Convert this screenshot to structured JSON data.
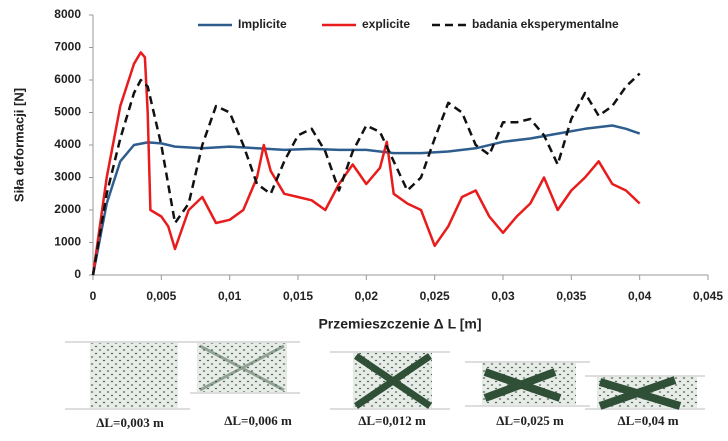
{
  "chart_data": {
    "type": "line",
    "y_label": "Siła deformacji [N]",
    "x_label": "Przemieszczenie Δ L [m]",
    "xlim": [
      0,
      0.045
    ],
    "xticks": [
      0,
      {
        "value": 0.005,
        "label": "0,005"
      },
      {
        "value": 0.01,
        "label": "0,01"
      },
      {
        "value": 0.015,
        "label": "0,015"
      },
      {
        "value": 0.02,
        "label": "0,02"
      },
      {
        "value": 0.025,
        "label": "0,025"
      },
      {
        "value": 0.03,
        "label": "0,03"
      },
      {
        "value": 0.035,
        "label": "0,035"
      },
      {
        "value": 0.04,
        "label": "0,04"
      },
      {
        "value": 0.045,
        "label": "0,045"
      }
    ],
    "ylim": [
      0,
      8000
    ],
    "yticks": [
      0,
      1000,
      2000,
      3000,
      4000,
      5000,
      6000,
      7000,
      8000
    ],
    "legend": "top",
    "series": [
      {
        "name": "Implicite",
        "color": "#2e5d8e",
        "style": "solid",
        "x": [
          0,
          0.001,
          0.002,
          0.003,
          0.004,
          0.005,
          0.006,
          0.008,
          0.01,
          0.012,
          0.014,
          0.016,
          0.018,
          0.02,
          0.022,
          0.024,
          0.026,
          0.028,
          0.03,
          0.032,
          0.034,
          0.036,
          0.038,
          0.039,
          0.04
        ],
        "values": [
          0,
          2200,
          3500,
          4000,
          4080,
          4050,
          3950,
          3900,
          3950,
          3900,
          3850,
          3880,
          3850,
          3850,
          3750,
          3750,
          3800,
          3900,
          4100,
          4200,
          4350,
          4500,
          4600,
          4500,
          4350
        ]
      },
      {
        "name": "explicite",
        "color": "#e81c1c",
        "style": "solid",
        "x": [
          0,
          0.001,
          0.002,
          0.003,
          0.0035,
          0.0038,
          0.004,
          0.0042,
          0.005,
          0.0055,
          0.006,
          0.0065,
          0.007,
          0.008,
          0.009,
          0.01,
          0.011,
          0.012,
          0.0125,
          0.013,
          0.014,
          0.015,
          0.016,
          0.017,
          0.018,
          0.019,
          0.02,
          0.021,
          0.0215,
          0.022,
          0.023,
          0.024,
          0.025,
          0.026,
          0.027,
          0.028,
          0.029,
          0.03,
          0.031,
          0.032,
          0.033,
          0.034,
          0.035,
          0.036,
          0.037,
          0.038,
          0.039,
          0.04
        ],
        "values": [
          0,
          3000,
          5200,
          6500,
          6850,
          6700,
          5000,
          2000,
          1800,
          1500,
          800,
          1400,
          2000,
          2400,
          1600,
          1700,
          2000,
          3000,
          4000,
          3200,
          2500,
          2400,
          2300,
          2000,
          2800,
          3400,
          2800,
          3300,
          4100,
          2500,
          2200,
          2000,
          900,
          1500,
          2400,
          2600,
          1800,
          1300,
          1800,
          2200,
          3000,
          2000,
          2600,
          3000,
          3500,
          2800,
          2600,
          2200
        ]
      },
      {
        "name": "badania eksperymentalne",
        "color": "#111111",
        "style": "dashed",
        "x": [
          0,
          0.001,
          0.002,
          0.003,
          0.0035,
          0.004,
          0.005,
          0.006,
          0.007,
          0.008,
          0.009,
          0.01,
          0.011,
          0.012,
          0.013,
          0.014,
          0.015,
          0.016,
          0.017,
          0.018,
          0.019,
          0.02,
          0.021,
          0.022,
          0.023,
          0.024,
          0.025,
          0.026,
          0.027,
          0.028,
          0.029,
          0.03,
          0.031,
          0.032,
          0.033,
          0.034,
          0.035,
          0.036,
          0.037,
          0.038,
          0.039,
          0.04
        ],
        "values": [
          0,
          2500,
          4200,
          5600,
          6000,
          5800,
          4000,
          1600,
          2200,
          4000,
          5200,
          5000,
          4000,
          2800,
          2500,
          3500,
          4300,
          4500,
          3800,
          2600,
          3800,
          4600,
          4400,
          3500,
          2600,
          3000,
          4200,
          5300,
          5000,
          4000,
          3700,
          4700,
          4700,
          4800,
          4300,
          3400,
          4800,
          5600,
          4900,
          5200,
          5800,
          6200
        ]
      }
    ]
  },
  "panels": [
    {
      "label": "ΔL=0,003 m"
    },
    {
      "label": "ΔL=0,006 m"
    },
    {
      "label": "ΔL=0,012 m"
    },
    {
      "label": "ΔL=0,025 m"
    },
    {
      "label": "ΔL=0,04 m"
    }
  ]
}
